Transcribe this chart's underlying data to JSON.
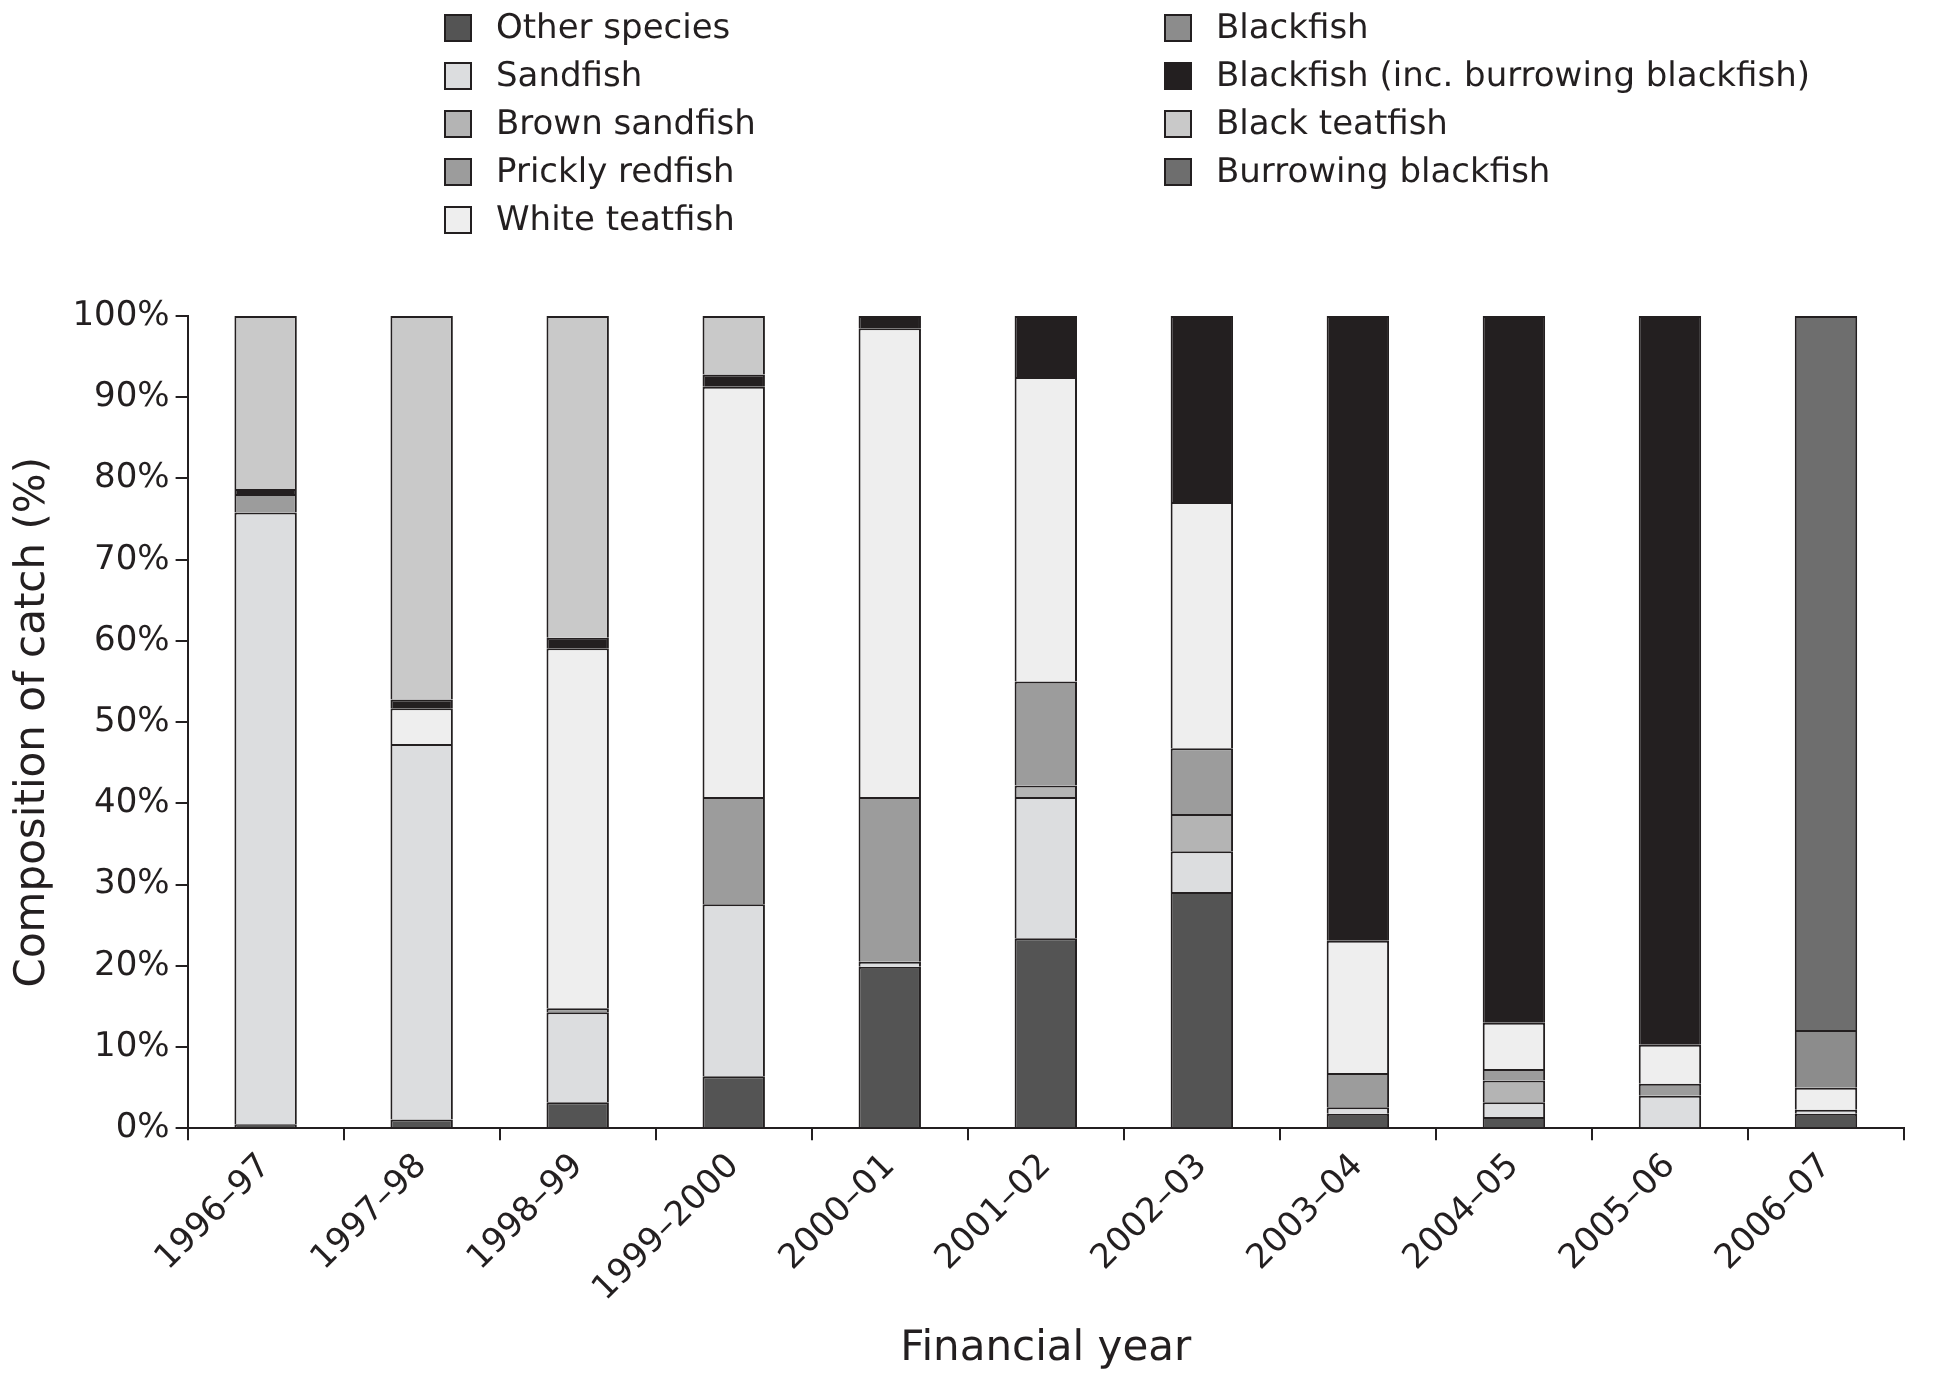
{
  "chart_data": {
    "type": "bar",
    "stacked": true,
    "xlabel": "Financial year",
    "ylabel": "Composition of catch (%)",
    "categories": [
      "1996–97",
      "1997–98",
      "1998–99",
      "1999–2000",
      "2000–01",
      "2001–02",
      "2002–03",
      "2003–04",
      "2004–05",
      "2005–06",
      "2006–07"
    ],
    "series": [
      {
        "name": "Other species",
        "color": "#545454",
        "values": [
          0.5,
          1.1,
          3.2,
          6.4,
          19.9,
          23.4,
          29.1,
          1.8,
          1.4,
          0,
          1.8
        ]
      },
      {
        "name": "Sandfish",
        "color": "#dcdddf",
        "values": [
          75.3,
          46.2,
          11.1,
          21.2,
          0.6,
          17.4,
          5.0,
          0.8,
          1.8,
          4.0,
          0.5
        ]
      },
      {
        "name": "Brown sandfish",
        "color": "#b4b4b4",
        "values": [
          0,
          0,
          0,
          0,
          0,
          1.4,
          4.6,
          0,
          2.7,
          0,
          0
        ]
      },
      {
        "name": "Prickly redfish",
        "color": "#9c9c9c",
        "values": [
          2.3,
          0,
          0.5,
          13.2,
          20.3,
          12.8,
          8.1,
          4.2,
          1.4,
          1.5,
          0
        ]
      },
      {
        "name": "White teatfish",
        "color": "#eeeeee",
        "values": [
          0,
          4.4,
          44.3,
          50.5,
          57.7,
          37.5,
          30.3,
          16.3,
          5.7,
          4.8,
          2.7
        ]
      },
      {
        "name": "Blackfish",
        "color": "#8c8c8c",
        "values": [
          0,
          0,
          0,
          0,
          0,
          0,
          0,
          0,
          0,
          0,
          7.1
        ]
      },
      {
        "name": "Blackfish (inc. burrowing blackfish)",
        "color": "#231f20",
        "values": [
          0.6,
          1.1,
          1.3,
          1.5,
          1.5,
          7.5,
          22.9,
          76.9,
          87.0,
          89.7,
          0
        ]
      },
      {
        "name": "Black teatfish",
        "color": "#c9c9c9",
        "values": [
          21.3,
          47.2,
          39.6,
          7.2,
          0,
          0,
          0,
          0,
          0,
          0,
          0
        ]
      },
      {
        "name": "Burrowing blackfish",
        "color": "#6e6e6e",
        "values": [
          0,
          0,
          0,
          0,
          0,
          0,
          0,
          0,
          0,
          0,
          87.9
        ]
      }
    ],
    "ylim": [
      0,
      100
    ],
    "yticks": [
      {
        "value": 0,
        "label": "0%"
      },
      {
        "value": 10,
        "label": "10%"
      },
      {
        "value": 20,
        "label": "20%"
      },
      {
        "value": 30,
        "label": "30%"
      },
      {
        "value": 40,
        "label": "40%"
      },
      {
        "value": 50,
        "label": "50%"
      },
      {
        "value": 60,
        "label": "60%"
      },
      {
        "value": 70,
        "label": "70%"
      },
      {
        "value": 80,
        "label": "80%"
      },
      {
        "value": 90,
        "label": "90%"
      },
      {
        "value": 100,
        "label": "100%"
      }
    ],
    "grid": false,
    "legend": "top"
  }
}
